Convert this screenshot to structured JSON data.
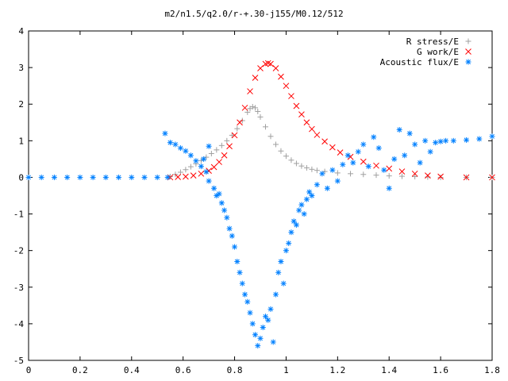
{
  "chart_data": {
    "type": "scatter",
    "title": "m2/n1.5/q2.0/r-+.30-j155/M0.12/512",
    "xlabel": "",
    "ylabel": "",
    "xlim": [
      0,
      1.8
    ],
    "ylim": [
      -5,
      4
    ],
    "x_ticks": [
      "0",
      "0.2",
      "0.4",
      "0.6",
      "0.8",
      "1",
      "1.2",
      "1.4",
      "1.6",
      "1.8"
    ],
    "y_ticks": [
      "4",
      "3",
      "2",
      "1",
      "0",
      "-1",
      "-2",
      "-3",
      "-4",
      "-5"
    ],
    "grid": false,
    "legend_position": "top-right",
    "series": [
      {
        "name": "R stress/E",
        "marker": "plus",
        "color": "#a0a0a0",
        "points": [
          [
            0.55,
            0.02
          ],
          [
            0.57,
            0.08
          ],
          [
            0.59,
            0.14
          ],
          [
            0.61,
            0.21
          ],
          [
            0.63,
            0.29
          ],
          [
            0.65,
            0.37
          ],
          [
            0.67,
            0.46
          ],
          [
            0.69,
            0.55
          ],
          [
            0.71,
            0.65
          ],
          [
            0.73,
            0.75
          ],
          [
            0.75,
            0.87
          ],
          [
            0.77,
            1.0
          ],
          [
            0.79,
            1.15
          ],
          [
            0.81,
            1.33
          ],
          [
            0.83,
            1.55
          ],
          [
            0.85,
            1.78
          ],
          [
            0.86,
            1.88
          ],
          [
            0.87,
            1.93
          ],
          [
            0.88,
            1.9
          ],
          [
            0.89,
            1.8
          ],
          [
            0.9,
            1.65
          ],
          [
            0.92,
            1.38
          ],
          [
            0.94,
            1.12
          ],
          [
            0.96,
            0.9
          ],
          [
            0.98,
            0.72
          ],
          [
            1.0,
            0.58
          ],
          [
            1.02,
            0.47
          ],
          [
            1.04,
            0.38
          ],
          [
            1.06,
            0.31
          ],
          [
            1.08,
            0.26
          ],
          [
            1.1,
            0.22
          ],
          [
            1.12,
            0.19
          ],
          [
            1.15,
            0.16
          ],
          [
            1.2,
            0.12
          ],
          [
            1.25,
            0.1
          ],
          [
            1.3,
            0.08
          ],
          [
            1.35,
            0.06
          ],
          [
            1.4,
            0.04
          ],
          [
            1.45,
            0.03
          ],
          [
            1.5,
            0.02
          ],
          [
            1.55,
            0.01
          ],
          [
            1.6,
            0.0
          ],
          [
            1.7,
            0.0
          ],
          [
            1.8,
            0.0
          ]
        ]
      },
      {
        "name": "G work/E",
        "marker": "cross",
        "color": "#ff0000",
        "points": [
          [
            0.55,
            0.0
          ],
          [
            0.58,
            0.01
          ],
          [
            0.61,
            0.02
          ],
          [
            0.64,
            0.05
          ],
          [
            0.67,
            0.1
          ],
          [
            0.7,
            0.18
          ],
          [
            0.72,
            0.28
          ],
          [
            0.74,
            0.42
          ],
          [
            0.76,
            0.6
          ],
          [
            0.78,
            0.85
          ],
          [
            0.8,
            1.15
          ],
          [
            0.82,
            1.5
          ],
          [
            0.84,
            1.9
          ],
          [
            0.86,
            2.35
          ],
          [
            0.88,
            2.72
          ],
          [
            0.9,
            2.98
          ],
          [
            0.92,
            3.1
          ],
          [
            0.93,
            3.12
          ],
          [
            0.94,
            3.1
          ],
          [
            0.96,
            2.98
          ],
          [
            0.98,
            2.75
          ],
          [
            1.0,
            2.5
          ],
          [
            1.02,
            2.22
          ],
          [
            1.04,
            1.95
          ],
          [
            1.06,
            1.72
          ],
          [
            1.08,
            1.5
          ],
          [
            1.1,
            1.32
          ],
          [
            1.12,
            1.16
          ],
          [
            1.15,
            0.98
          ],
          [
            1.18,
            0.82
          ],
          [
            1.21,
            0.68
          ],
          [
            1.25,
            0.56
          ],
          [
            1.3,
            0.43
          ],
          [
            1.35,
            0.32
          ],
          [
            1.4,
            0.24
          ],
          [
            1.45,
            0.16
          ],
          [
            1.5,
            0.1
          ],
          [
            1.55,
            0.05
          ],
          [
            1.6,
            0.02
          ],
          [
            1.7,
            0.0
          ],
          [
            1.8,
            0.0
          ]
        ]
      },
      {
        "name": "Acoustic flux/E",
        "marker": "star",
        "color": "#0080ff",
        "points": [
          [
            0.0,
            0.0
          ],
          [
            0.05,
            0.0
          ],
          [
            0.1,
            0.0
          ],
          [
            0.15,
            0.0
          ],
          [
            0.2,
            0.0
          ],
          [
            0.25,
            0.0
          ],
          [
            0.3,
            0.0
          ],
          [
            0.35,
            0.0
          ],
          [
            0.4,
            0.0
          ],
          [
            0.45,
            0.0
          ],
          [
            0.5,
            0.0
          ],
          [
            0.54,
            0.0
          ],
          [
            0.53,
            1.2
          ],
          [
            0.55,
            0.95
          ],
          [
            0.57,
            0.9
          ],
          [
            0.59,
            0.8
          ],
          [
            0.61,
            0.72
          ],
          [
            0.63,
            0.6
          ],
          [
            0.65,
            0.45
          ],
          [
            0.67,
            0.3
          ],
          [
            0.69,
            0.15
          ],
          [
            0.7,
            0.85
          ],
          [
            0.68,
            0.5
          ],
          [
            0.7,
            -0.1
          ],
          [
            0.72,
            -0.3
          ],
          [
            0.73,
            -0.5
          ],
          [
            0.74,
            -0.45
          ],
          [
            0.75,
            -0.7
          ],
          [
            0.76,
            -0.9
          ],
          [
            0.77,
            -1.1
          ],
          [
            0.78,
            -1.4
          ],
          [
            0.79,
            -1.6
          ],
          [
            0.8,
            -1.9
          ],
          [
            0.81,
            -2.3
          ],
          [
            0.82,
            -2.6
          ],
          [
            0.83,
            -2.9
          ],
          [
            0.84,
            -3.2
          ],
          [
            0.85,
            -3.4
          ],
          [
            0.86,
            -3.7
          ],
          [
            0.87,
            -4.0
          ],
          [
            0.88,
            -4.3
          ],
          [
            0.89,
            -4.6
          ],
          [
            0.9,
            -4.4
          ],
          [
            0.91,
            -4.1
          ],
          [
            0.92,
            -3.8
          ],
          [
            0.93,
            -3.9
          ],
          [
            0.94,
            -3.6
          ],
          [
            0.95,
            -4.5
          ],
          [
            0.96,
            -3.2
          ],
          [
            0.97,
            -2.6
          ],
          [
            0.98,
            -2.3
          ],
          [
            0.99,
            -2.9
          ],
          [
            1.0,
            -2.0
          ],
          [
            1.01,
            -1.8
          ],
          [
            1.02,
            -1.5
          ],
          [
            1.03,
            -1.2
          ],
          [
            1.04,
            -1.3
          ],
          [
            1.05,
            -0.9
          ],
          [
            1.06,
            -0.75
          ],
          [
            1.07,
            -1.0
          ],
          [
            1.08,
            -0.6
          ],
          [
            1.09,
            -0.4
          ],
          [
            1.1,
            -0.5
          ],
          [
            1.12,
            -0.2
          ],
          [
            1.14,
            0.1
          ],
          [
            1.16,
            -0.3
          ],
          [
            1.18,
            0.2
          ],
          [
            1.2,
            -0.1
          ],
          [
            1.22,
            0.35
          ],
          [
            1.24,
            0.6
          ],
          [
            1.26,
            0.4
          ],
          [
            1.28,
            0.7
          ],
          [
            1.3,
            0.9
          ],
          [
            1.32,
            0.3
          ],
          [
            1.34,
            1.1
          ],
          [
            1.36,
            0.8
          ],
          [
            1.38,
            0.2
          ],
          [
            1.4,
            -0.3
          ],
          [
            1.42,
            0.5
          ],
          [
            1.44,
            1.3
          ],
          [
            1.46,
            0.6
          ],
          [
            1.48,
            1.2
          ],
          [
            1.5,
            0.9
          ],
          [
            1.52,
            0.4
          ],
          [
            1.54,
            1.0
          ],
          [
            1.56,
            0.7
          ],
          [
            1.58,
            0.95
          ],
          [
            1.6,
            0.98
          ],
          [
            1.62,
            1.0
          ],
          [
            1.65,
            1.0
          ],
          [
            1.7,
            1.02
          ],
          [
            1.75,
            1.05
          ],
          [
            1.8,
            1.12
          ]
        ]
      }
    ]
  }
}
